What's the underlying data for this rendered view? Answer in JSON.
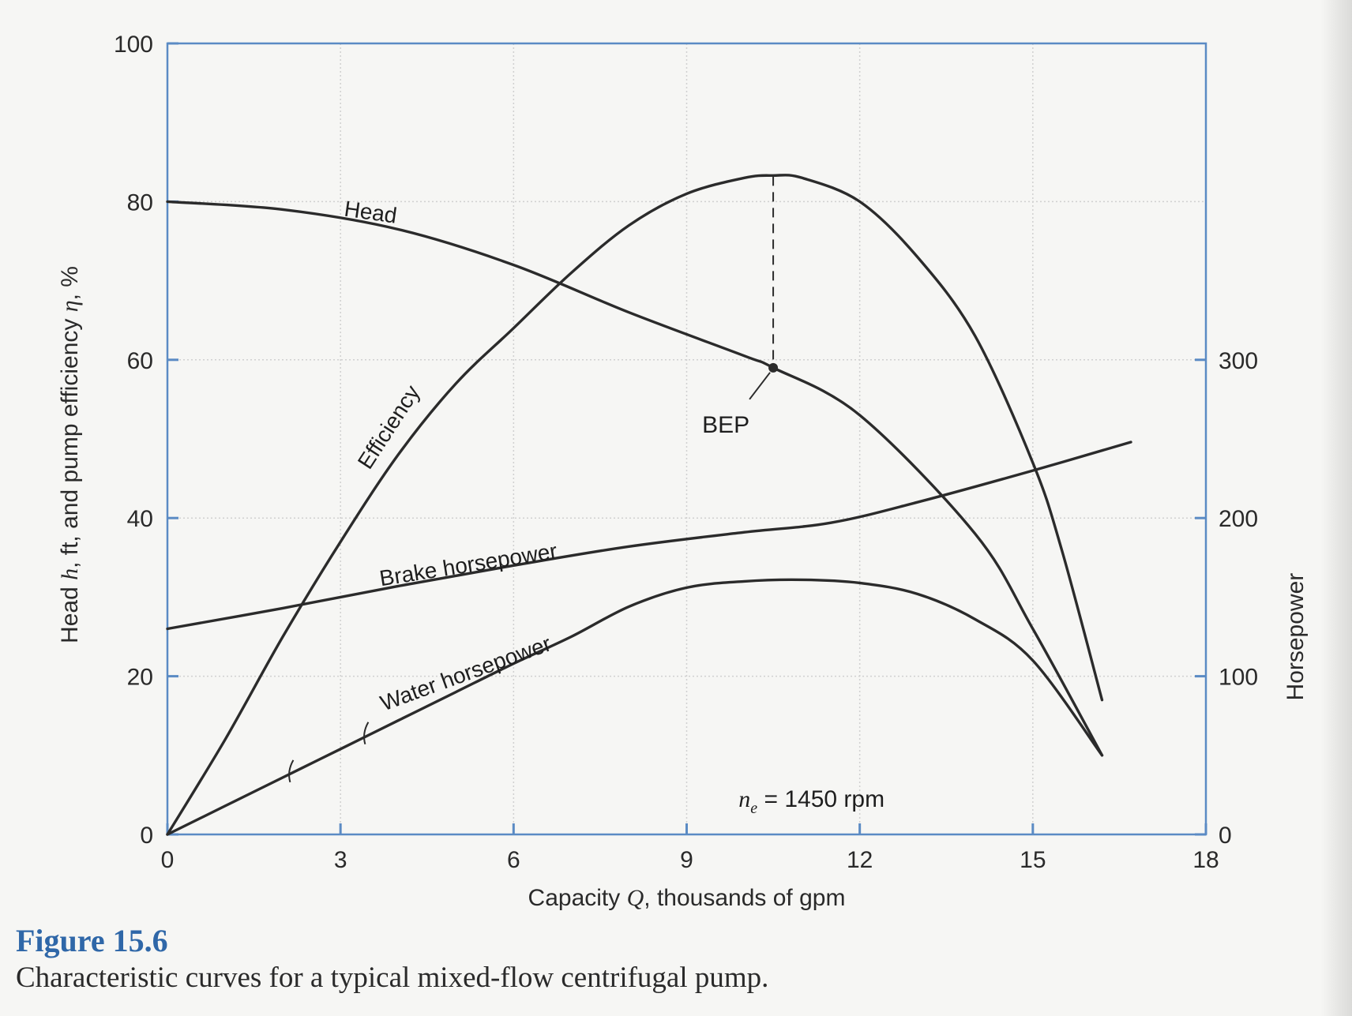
{
  "chart_data": {
    "type": "line",
    "xlabel_prefix": "Capacity ",
    "xlabel_symbol": "Q",
    "xlabel_suffix": ", thousands of gpm",
    "ylabel_left_prefix": "Head ",
    "ylabel_left_symbol_h": "h",
    "ylabel_left_mid": ", ft, and pump efficiency ",
    "ylabel_left_symbol_eta": "η",
    "ylabel_left_suffix": ", %",
    "ylabel_right": "Horsepower",
    "xlim": [
      0,
      18
    ],
    "ylim_left": [
      0,
      100
    ],
    "ylim_right": [
      0,
      500
    ],
    "x_ticks": [
      "0",
      "3",
      "6",
      "9",
      "12",
      "15",
      "18"
    ],
    "y_left_ticks": [
      "0",
      "20",
      "40",
      "60",
      "80",
      "100"
    ],
    "y_right_ticks": [
      "0",
      "100",
      "200",
      "300"
    ],
    "grid": true,
    "series": [
      {
        "name": "Head",
        "axis": "left",
        "x": [
          0,
          2,
          4,
          6,
          8,
          10,
          10.5,
          12,
          14,
          15,
          16.2
        ],
        "y": [
          80,
          79,
          76.5,
          72,
          66,
          60.5,
          59,
          53,
          38,
          26,
          10
        ]
      },
      {
        "name": "Efficiency",
        "axis": "left",
        "x": [
          0,
          1,
          2,
          3,
          4,
          5,
          6,
          7,
          8,
          9,
          10,
          10.5,
          11,
          12,
          13,
          14,
          15,
          15.5,
          16.2
        ],
        "y": [
          0,
          12,
          25,
          37,
          48,
          57,
          64,
          71,
          77,
          81,
          83,
          83.3,
          83,
          80,
          73,
          63,
          47,
          36,
          17
        ]
      },
      {
        "name": "Brake horsepower",
        "axis": "right",
        "x": [
          0,
          2,
          4,
          6,
          8,
          10,
          11.5,
          13,
          15,
          16.7
        ],
        "y": [
          130,
          143,
          157,
          170,
          182,
          191,
          197,
          210,
          230,
          248
        ]
      },
      {
        "name": "Water horsepower",
        "axis": "right",
        "x": [
          0,
          1,
          2,
          3,
          4,
          5,
          6,
          7,
          8,
          9,
          10,
          11,
          12,
          13,
          14,
          15,
          16.2
        ],
        "y": [
          0,
          18,
          36,
          54,
          72,
          90,
          108,
          125,
          144,
          156,
          160,
          161,
          159,
          152,
          136,
          110,
          50
        ]
      }
    ],
    "annotations": {
      "bep_label": "BEP",
      "bep_point": {
        "x": 10.5,
        "y": 59
      },
      "speed_symbol": "n",
      "speed_subscript": "e",
      "speed_text": " = 1450 rpm"
    }
  },
  "caption": {
    "figure_number": "Figure 15.6",
    "text": "Characteristic curves for a typical mixed-flow centrifugal pump."
  },
  "colors": {
    "frame": "#5b8bc4",
    "curve": "#2b2b2b",
    "figure_number": "#2f67a8"
  }
}
